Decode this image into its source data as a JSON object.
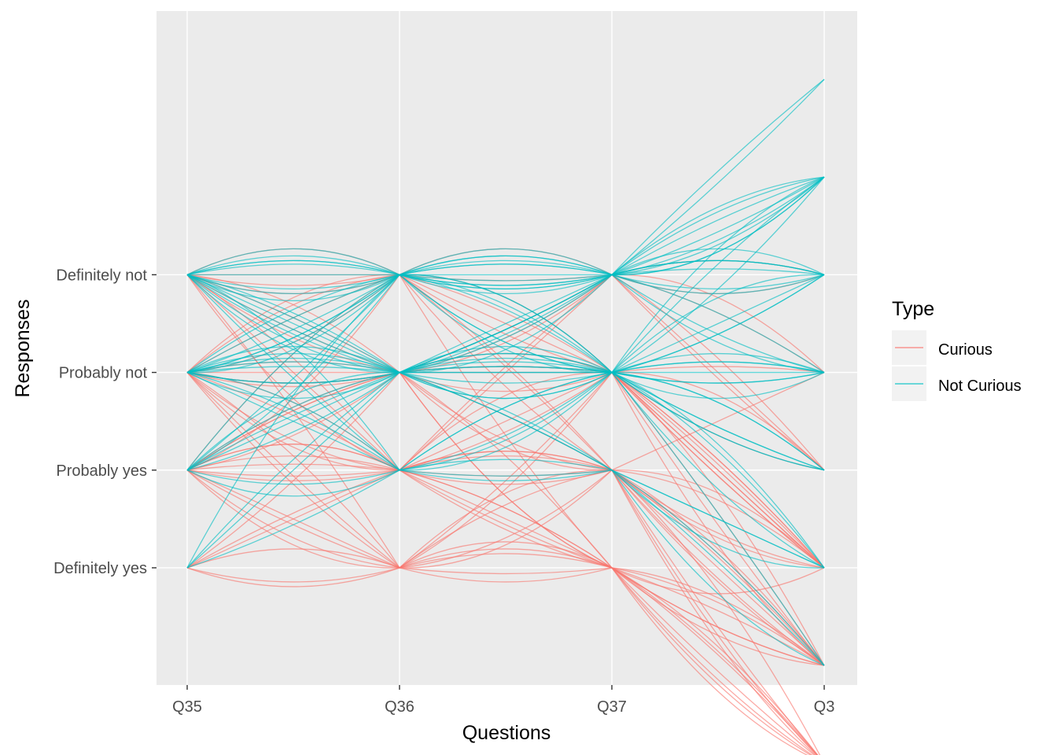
{
  "chart_data": {
    "type": "parallel-coordinates",
    "xlabel": "Questions",
    "ylabel": "Responses",
    "x_categories": [
      "Q35",
      "Q36",
      "Q37",
      "Q3"
    ],
    "y_categories": [
      "Definitely not",
      "Probably not",
      "Probably yes",
      "Definitely yes"
    ],
    "y_ticks": [
      1,
      2,
      3,
      4
    ],
    "ylim": [
      -1.7,
      5.2
    ],
    "q3_levels": [
      -1,
      0,
      1,
      2,
      3,
      4,
      5,
      6
    ],
    "legend": {
      "title": "Type",
      "position": "right",
      "entries": [
        {
          "label": "Curious",
          "color": "#F8766D"
        },
        {
          "label": "Not Curious",
          "color": "#00BFC4"
        }
      ]
    },
    "series": [
      {
        "name": "Curious",
        "color": "#F8766D",
        "responses": [
          [
            1,
            1,
            1,
            3
          ],
          [
            1,
            1,
            2,
            4
          ],
          [
            1,
            2,
            2,
            5
          ],
          [
            1,
            2,
            3,
            6
          ],
          [
            1,
            1,
            3,
            2
          ],
          [
            1,
            2,
            1,
            1
          ],
          [
            1,
            3,
            2,
            4
          ],
          [
            1,
            3,
            3,
            5
          ],
          [
            1,
            4,
            3,
            6
          ],
          [
            1,
            2,
            4,
            6
          ],
          [
            1,
            1,
            2,
            5
          ],
          [
            1,
            3,
            4,
            5
          ],
          [
            2,
            1,
            1,
            2
          ],
          [
            2,
            1,
            2,
            4
          ],
          [
            2,
            2,
            2,
            3
          ],
          [
            2,
            2,
            3,
            5
          ],
          [
            2,
            3,
            3,
            6
          ],
          [
            2,
            3,
            4,
            5
          ],
          [
            2,
            4,
            4,
            6
          ],
          [
            2,
            2,
            4,
            5
          ],
          [
            2,
            4,
            3,
            4
          ],
          [
            2,
            1,
            3,
            6
          ],
          [
            2,
            2,
            1,
            1
          ],
          [
            2,
            3,
            2,
            4
          ],
          [
            2,
            3,
            1,
            3
          ],
          [
            2,
            4,
            2,
            5
          ],
          [
            2,
            2,
            2,
            4
          ],
          [
            2,
            1,
            4,
            6
          ],
          [
            3,
            1,
            2,
            2
          ],
          [
            3,
            2,
            2,
            3
          ],
          [
            3,
            2,
            3,
            5
          ],
          [
            3,
            3,
            3,
            5
          ],
          [
            3,
            3,
            4,
            6
          ],
          [
            3,
            4,
            4,
            6
          ],
          [
            3,
            4,
            3,
            5
          ],
          [
            3,
            3,
            2,
            4
          ],
          [
            3,
            2,
            1,
            2
          ],
          [
            3,
            3,
            1,
            3
          ],
          [
            3,
            1,
            3,
            4
          ],
          [
            3,
            4,
            2,
            5
          ],
          [
            3,
            3,
            3,
            4
          ],
          [
            3,
            2,
            4,
            5
          ],
          [
            3,
            4,
            4,
            5
          ],
          [
            3,
            3,
            4,
            4
          ],
          [
            4,
            3,
            3,
            5
          ],
          [
            4,
            4,
            4,
            6
          ],
          [
            4,
            3,
            4,
            6
          ],
          [
            4,
            4,
            3,
            4
          ],
          [
            4,
            2,
            2,
            4
          ],
          [
            4,
            4,
            4,
            5
          ]
        ]
      },
      {
        "name": "Not Curious",
        "color": "#00BFC4",
        "responses": [
          [
            1,
            1,
            1,
            -1
          ],
          [
            1,
            1,
            1,
            0
          ],
          [
            1,
            1,
            2,
            1
          ],
          [
            1,
            2,
            2,
            2
          ],
          [
            1,
            1,
            1,
            0
          ],
          [
            1,
            2,
            1,
            1
          ],
          [
            1,
            1,
            2,
            2
          ],
          [
            1,
            2,
            2,
            3
          ],
          [
            1,
            1,
            1,
            1
          ],
          [
            1,
            2,
            3,
            4
          ],
          [
            1,
            1,
            1,
            2
          ],
          [
            1,
            2,
            1,
            0
          ],
          [
            1,
            1,
            2,
            3
          ],
          [
            1,
            2,
            2,
            1
          ],
          [
            1,
            3,
            2,
            3
          ],
          [
            1,
            3,
            3,
            5
          ],
          [
            1,
            1,
            1,
            0
          ],
          [
            1,
            2,
            2,
            0
          ],
          [
            2,
            1,
            1,
            0
          ],
          [
            2,
            1,
            2,
            1
          ],
          [
            2,
            2,
            2,
            2
          ],
          [
            2,
            2,
            1,
            0
          ],
          [
            2,
            1,
            1,
            1
          ],
          [
            2,
            2,
            2,
            3
          ],
          [
            2,
            3,
            2,
            2
          ],
          [
            2,
            1,
            2,
            4
          ],
          [
            2,
            2,
            3,
            4
          ],
          [
            2,
            3,
            3,
            5
          ],
          [
            2,
            1,
            1,
            2
          ],
          [
            2,
            2,
            1,
            -1
          ],
          [
            2,
            1,
            2,
            0
          ],
          [
            2,
            2,
            2,
            1
          ],
          [
            2,
            3,
            2,
            4
          ],
          [
            2,
            2,
            2,
            5
          ],
          [
            2,
            1,
            1,
            1
          ],
          [
            2,
            2,
            1,
            2
          ],
          [
            3,
            1,
            1,
            0
          ],
          [
            3,
            2,
            2,
            2
          ],
          [
            3,
            2,
            1,
            1
          ],
          [
            3,
            1,
            2,
            2
          ],
          [
            3,
            2,
            2,
            3
          ],
          [
            3,
            3,
            2,
            4
          ],
          [
            3,
            2,
            3,
            4
          ],
          [
            3,
            1,
            1,
            1
          ],
          [
            3,
            3,
            3,
            5
          ],
          [
            3,
            2,
            2,
            0
          ],
          [
            4,
            2,
            2,
            2
          ],
          [
            4,
            3,
            2,
            3
          ],
          [
            4,
            1,
            1,
            0
          ],
          [
            4,
            2,
            1,
            1
          ]
        ]
      }
    ]
  }
}
